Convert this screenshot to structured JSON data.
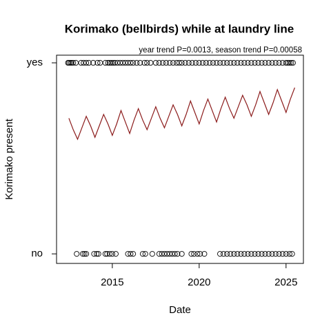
{
  "chart_data": {
    "type": "scatter",
    "title": "Korimako (bellbirds) while at laundry line",
    "subtitle": "year trend P=0.0013, season trend P=0.00058",
    "x_label": "Date",
    "y_label": "Korimako present",
    "xlim": [
      2011.79,
      2026.0
    ],
    "xticks": [
      2015,
      2020,
      2025
    ],
    "ylim": [
      -0.05,
      1.04
    ],
    "yticks": [
      {
        "value": 0,
        "label": "no"
      },
      {
        "value": 1,
        "label": "yes"
      }
    ],
    "point_color": "#000000",
    "points": {
      "x": [
        2012.45,
        2012.5,
        2012.58,
        2012.65,
        2012.75,
        2012.9,
        2013.2,
        2013.35,
        2013.5,
        2013.65,
        2013.9,
        2014.15,
        2014.3,
        2014.6,
        2014.75,
        2014.85,
        2014.95,
        2015.05,
        2015.15,
        2015.3,
        2015.45,
        2015.6,
        2015.75,
        2015.9,
        2016.05,
        2016.2,
        2016.4,
        2016.6,
        2016.85,
        2017.0,
        2017.2,
        2017.5,
        2017.7,
        2017.9,
        2018.1,
        2018.3,
        2018.5,
        2018.7,
        2018.85,
        2019.0,
        2019.2,
        2019.4,
        2019.6,
        2019.8,
        2020.0,
        2020.2,
        2020.4,
        2020.6,
        2020.8,
        2021.0,
        2021.2,
        2021.4,
        2021.6,
        2021.8,
        2022.0,
        2022.2,
        2022.4,
        2022.6,
        2022.8,
        2023.0,
        2023.2,
        2023.4,
        2023.6,
        2023.8,
        2024.0,
        2024.2,
        2024.4,
        2024.6,
        2024.8,
        2025.0,
        2025.1,
        2025.2,
        2025.3,
        2025.4,
        2012.95,
        2013.3,
        2013.4,
        2013.5,
        2013.95,
        2014.1,
        2014.2,
        2014.6,
        2014.7,
        2014.85,
        2015.0,
        2015.2,
        2015.9,
        2016.05,
        2016.2,
        2016.75,
        2016.9,
        2017.3,
        2017.7,
        2017.85,
        2018.0,
        2018.15,
        2018.3,
        2018.45,
        2018.6,
        2018.75,
        2019.0,
        2019.55,
        2019.7,
        2019.9,
        2020.05,
        2020.3,
        2021.2,
        2021.4,
        2021.6,
        2021.8,
        2022.0,
        2022.2,
        2022.4,
        2022.6,
        2022.8,
        2023.0,
        2023.2,
        2023.4,
        2023.6,
        2023.8,
        2024.0,
        2024.2,
        2024.4,
        2024.6,
        2024.8,
        2025.0,
        2025.2,
        2025.35
      ],
      "values": [
        1,
        1,
        1,
        1,
        1,
        1,
        1,
        1,
        1,
        1,
        1,
        1,
        1,
        1,
        1,
        1,
        1,
        1,
        1,
        1,
        1,
        1,
        1,
        1,
        1,
        1,
        1,
        1,
        1,
        1,
        1,
        1,
        1,
        1,
        1,
        1,
        1,
        1,
        1,
        1,
        1,
        1,
        1,
        1,
        1,
        1,
        1,
        1,
        1,
        1,
        1,
        1,
        1,
        1,
        1,
        1,
        1,
        1,
        1,
        1,
        1,
        1,
        1,
        1,
        1,
        1,
        1,
        1,
        1,
        1,
        1,
        1,
        1,
        1,
        0,
        0,
        0,
        0,
        0,
        0,
        0,
        0,
        0,
        0,
        0,
        0,
        0,
        0,
        0,
        0,
        0,
        0,
        0,
        0,
        0,
        0,
        0,
        0,
        0,
        0,
        0,
        0,
        0,
        0,
        0,
        0,
        0,
        0,
        0,
        0,
        0,
        0,
        0,
        0,
        0,
        0,
        0,
        0,
        0,
        0,
        0,
        0,
        0,
        0,
        0,
        0,
        0,
        0
      ]
    },
    "fit": {
      "color": "#8b1a1a",
      "x": [
        2012.5,
        2012.75,
        2013.0,
        2013.25,
        2013.5,
        2013.75,
        2014.0,
        2014.25,
        2014.5,
        2014.75,
        2015.0,
        2015.25,
        2015.5,
        2015.75,
        2016.0,
        2016.25,
        2016.5,
        2016.75,
        2017.0,
        2017.25,
        2017.5,
        2017.75,
        2018.0,
        2018.25,
        2018.5,
        2018.75,
        2019.0,
        2019.25,
        2019.5,
        2019.75,
        2020.0,
        2020.25,
        2020.5,
        2020.75,
        2021.0,
        2021.25,
        2021.5,
        2021.75,
        2022.0,
        2022.25,
        2022.5,
        2022.75,
        2023.0,
        2023.25,
        2023.5,
        2023.75,
        2024.0,
        2024.25,
        2024.5,
        2024.75,
        2025.0,
        2025.25,
        2025.5
      ],
      "values": [
        0.71,
        0.65,
        0.6,
        0.66,
        0.72,
        0.67,
        0.61,
        0.67,
        0.73,
        0.68,
        0.62,
        0.68,
        0.75,
        0.69,
        0.63,
        0.7,
        0.76,
        0.7,
        0.65,
        0.71,
        0.77,
        0.71,
        0.66,
        0.72,
        0.78,
        0.73,
        0.67,
        0.73,
        0.8,
        0.74,
        0.68,
        0.75,
        0.81,
        0.75,
        0.69,
        0.76,
        0.82,
        0.76,
        0.71,
        0.77,
        0.83,
        0.78,
        0.72,
        0.78,
        0.85,
        0.79,
        0.73,
        0.79,
        0.86,
        0.8,
        0.74,
        0.81,
        0.87
      ]
    }
  }
}
